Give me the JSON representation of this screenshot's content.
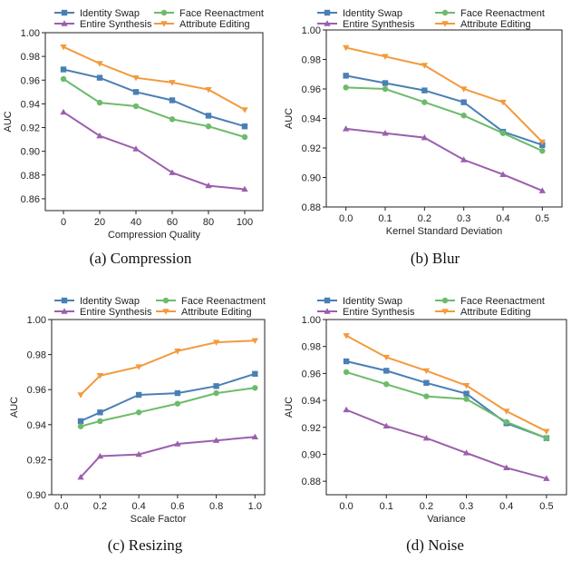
{
  "legend": [
    {
      "name": "Identity Swap",
      "color": "#4a7fb5",
      "marker": "square"
    },
    {
      "name": "Face Reenactment",
      "color": "#6dbb6a",
      "marker": "circle"
    },
    {
      "name": "Entire Synthesis",
      "color": "#9b5fad",
      "marker": "triangle"
    },
    {
      "name": "Attribute Editing",
      "color": "#f39a3d",
      "marker": "triangle-down"
    }
  ],
  "chart_data": [
    {
      "type": "line",
      "caption": "(a)  Compression",
      "xlabel": "Compression Quality",
      "ylabel": "AUC",
      "x": [
        0,
        20,
        40,
        60,
        80,
        100
      ],
      "xticks": [
        "0",
        "20",
        "40",
        "60",
        "80",
        "100"
      ],
      "xlim": [
        -10,
        110
      ],
      "yticks": [
        "0.86",
        "0.88",
        "0.90",
        "0.92",
        "0.94",
        "0.96",
        "0.98",
        "1.00"
      ],
      "ylim": [
        0.85,
        1.0
      ],
      "series": [
        {
          "name": "Identity Swap",
          "values": [
            0.969,
            0.962,
            0.95,
            0.943,
            0.93,
            0.921
          ]
        },
        {
          "name": "Face Reenactment",
          "values": [
            0.961,
            0.941,
            0.938,
            0.927,
            0.921,
            0.912
          ]
        },
        {
          "name": "Entire Synthesis",
          "values": [
            0.933,
            0.913,
            0.902,
            0.882,
            0.871,
            0.868
          ]
        },
        {
          "name": "Attribute Editing",
          "values": [
            0.988,
            0.974,
            0.962,
            0.958,
            0.952,
            0.935
          ]
        }
      ]
    },
    {
      "type": "line",
      "caption": "(b)  Blur",
      "xlabel": "Kernel Standard Deviation",
      "ylabel": "AUC",
      "x": [
        0.0,
        0.1,
        0.2,
        0.3,
        0.4,
        0.5
      ],
      "xticks": [
        "0.0",
        "0.1",
        "0.2",
        "0.3",
        "0.4",
        "0.5"
      ],
      "xlim": [
        -0.05,
        0.55
      ],
      "yticks": [
        "0.88",
        "0.90",
        "0.92",
        "0.94",
        "0.96",
        "0.98",
        "1.00"
      ],
      "ylim": [
        0.88,
        1.0
      ],
      "series": [
        {
          "name": "Identity Swap",
          "values": [
            0.969,
            0.964,
            0.959,
            0.951,
            0.931,
            0.922
          ]
        },
        {
          "name": "Face Reenactment",
          "values": [
            0.961,
            0.96,
            0.951,
            0.942,
            0.93,
            0.918
          ]
        },
        {
          "name": "Entire Synthesis",
          "values": [
            0.933,
            0.93,
            0.927,
            0.912,
            0.902,
            0.891
          ]
        },
        {
          "name": "Attribute Editing",
          "values": [
            0.988,
            0.982,
            0.976,
            0.96,
            0.951,
            0.924
          ]
        }
      ]
    },
    {
      "type": "line",
      "caption": "(c)  Resizing",
      "xlabel": "Scale Factor",
      "ylabel": "AUC",
      "x": [
        0.1,
        0.2,
        0.4,
        0.6,
        0.8,
        1.0
      ],
      "xticks": [
        "0.0",
        "0.2",
        "0.4",
        "0.6",
        "0.8",
        "1.0"
      ],
      "xtickvals": [
        0.0,
        0.2,
        0.4,
        0.6,
        0.8,
        1.0
      ],
      "xlim": [
        -0.05,
        1.05
      ],
      "yticks": [
        "0.90",
        "0.92",
        "0.94",
        "0.96",
        "0.98",
        "1.00"
      ],
      "ylim": [
        0.9,
        1.0
      ],
      "series": [
        {
          "name": "Identity Swap",
          "values": [
            0.942,
            0.947,
            0.957,
            0.958,
            0.962,
            0.969
          ]
        },
        {
          "name": "Face Reenactment",
          "values": [
            0.939,
            0.942,
            0.947,
            0.952,
            0.958,
            0.961
          ]
        },
        {
          "name": "Entire Synthesis",
          "values": [
            0.91,
            0.922,
            0.923,
            0.929,
            0.931,
            0.933
          ]
        },
        {
          "name": "Attribute Editing",
          "values": [
            0.957,
            0.968,
            0.973,
            0.982,
            0.987,
            0.988
          ]
        }
      ]
    },
    {
      "type": "line",
      "caption": "(d)  Noise",
      "xlabel": "Variance",
      "ylabel": "AUC",
      "x": [
        0.0,
        0.1,
        0.2,
        0.3,
        0.4,
        0.5
      ],
      "xticks": [
        "0.0",
        "0.1",
        "0.2",
        "0.3",
        "0.4",
        "0.5"
      ],
      "xlim": [
        -0.05,
        0.55
      ],
      "yticks": [
        "0.88",
        "0.90",
        "0.92",
        "0.94",
        "0.96",
        "0.98",
        "1.00"
      ],
      "ylim": [
        0.87,
        1.0
      ],
      "series": [
        {
          "name": "Identity Swap",
          "values": [
            0.969,
            0.962,
            0.953,
            0.945,
            0.923,
            0.912
          ]
        },
        {
          "name": "Face Reenactment",
          "values": [
            0.961,
            0.952,
            0.943,
            0.941,
            0.924,
            0.912
          ]
        },
        {
          "name": "Entire Synthesis",
          "values": [
            0.933,
            0.921,
            0.912,
            0.901,
            0.89,
            0.882
          ]
        },
        {
          "name": "Attribute Editing",
          "values": [
            0.988,
            0.972,
            0.962,
            0.951,
            0.932,
            0.917
          ]
        }
      ]
    }
  ]
}
